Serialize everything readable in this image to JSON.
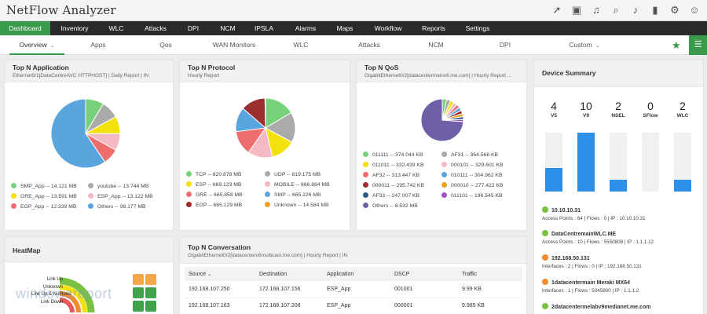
{
  "app": {
    "title": "NetFlow Analyzer"
  },
  "top_icons": [
    "rocket-icon",
    "monitor-icon",
    "headset-icon",
    "search-icon",
    "bell-icon",
    "battery-icon",
    "gear-icon",
    "user-icon"
  ],
  "main_nav": {
    "tabs": [
      {
        "label": "Dashboard"
      },
      {
        "label": "Inventory"
      },
      {
        "label": "WLC"
      },
      {
        "label": "Attacks"
      },
      {
        "label": "DPI"
      },
      {
        "label": "NCM"
      },
      {
        "label": "IPSLA"
      },
      {
        "label": "Alarms"
      },
      {
        "label": "Maps"
      },
      {
        "label": "Workflow"
      },
      {
        "label": "Reports"
      },
      {
        "label": "Settings"
      }
    ],
    "active": "Dashboard"
  },
  "sub_nav": {
    "tabs": [
      {
        "label": "Overview"
      },
      {
        "label": "Apps"
      },
      {
        "label": "Qos"
      },
      {
        "label": "WAN Monitors"
      },
      {
        "label": "WLC"
      },
      {
        "label": "Attacks"
      },
      {
        "label": "NCM"
      },
      {
        "label": "DPI"
      },
      {
        "label": "Custom"
      }
    ],
    "active": "Overview"
  },
  "top_app": {
    "title": "Top N Application",
    "subtitle": "Ethernet0/1[DataCentreAVC HTTPHOST] | Daily Report | IN",
    "legend": [
      {
        "label": "SMP_App -- 14.121 MB",
        "color": "#77d07a"
      },
      {
        "label": "youtube -- 13.744 MB",
        "color": "#aaaaaa"
      },
      {
        "label": "GRE_App -- 13.591 MB",
        "color": "#f4e00a"
      },
      {
        "label": "ESP_App -- 13.122 MB",
        "color": "#f5b9c3"
      },
      {
        "label": "EGP_App -- 12.339 MB",
        "color": "#ee6e6e"
      },
      {
        "label": "Others -- 98.177 MB",
        "color": "#5aa5de"
      }
    ],
    "pie": [
      14.121,
      13.744,
      13.591,
      13.122,
      12.339,
      98.177
    ]
  },
  "top_protocol": {
    "title": "Top N Protocol",
    "subtitle": "Hourly Report",
    "legend": [
      {
        "label": "TCP -- 820.878 MB",
        "color": "#77d07a"
      },
      {
        "label": "UDP -- 819.175 MB",
        "color": "#aaaaaa"
      },
      {
        "label": "ESP -- 669.123 MB",
        "color": "#f4e00a"
      },
      {
        "label": "MOBILE -- 666.884 MB",
        "color": "#f5b9c3"
      },
      {
        "label": "GRE -- 665.858 MB",
        "color": "#ee6e6e"
      },
      {
        "label": "SMP -- 665.226 MB",
        "color": "#5aa5de"
      },
      {
        "label": "EGP -- 665.129 MB",
        "color": "#9b2f2f"
      },
      {
        "label": "Unknown -- 14.584 MB",
        "color": "#f0a020"
      }
    ],
    "pie": [
      820.878,
      819.175,
      669.123,
      666.884,
      665.858,
      665.226,
      665.129,
      14.584
    ]
  },
  "top_qos": {
    "title": "Top N QoS",
    "subtitle": "GigabitEthernet0/2[datacentermainv6.me.com] | Hourly Report ...",
    "legend": [
      {
        "label": "011111 -- 374.044 KB",
        "color": "#77d07a"
      },
      {
        "label": "AF31 -- 364.568 KB",
        "color": "#aaaaaa"
      },
      {
        "label": "011011 -- 332.439 KB",
        "color": "#f4e00a"
      },
      {
        "label": "000101 -- 329.601 KB",
        "color": "#f5b9c3"
      },
      {
        "label": "AF32 -- 313.447 KB",
        "color": "#ee6e6e"
      },
      {
        "label": "010111 -- 304.962 KB",
        "color": "#5aa5de"
      },
      {
        "label": "000011 -- 295.742 KB",
        "color": "#9b2f2f"
      },
      {
        "label": "000010 -- 277.422 KB",
        "color": "#f0a020"
      },
      {
        "label": "AF33 -- 247.007 KB",
        "color": "#2e5c8a"
      },
      {
        "label": "011101 -- 196.545 KB",
        "color": "#a450c8"
      },
      {
        "label": "Others -- 8.532 MB",
        "color": "#6f5fa8"
      }
    ],
    "pie": [
      374.044,
      364.568,
      332.439,
      329.601,
      313.447,
      304.962,
      295.742,
      277.422,
      247.007,
      196.545,
      8532
    ]
  },
  "device_summary": {
    "title": "Device Summary",
    "counts": [
      {
        "value": "4",
        "label": "V5",
        "fill": 0.4
      },
      {
        "value": "10",
        "label": "V9",
        "fill": 1.0
      },
      {
        "value": "2",
        "label": "NSEL",
        "fill": 0.2
      },
      {
        "value": "0",
        "label": "SFlow",
        "fill": 0
      },
      {
        "value": "2",
        "label": "WLC",
        "fill": 0.2
      }
    ],
    "devices": [
      {
        "name": "10.10.10.31",
        "meta": "Access Points : 64  |  Flows : 0  |  IP : 10.10.10.31",
        "icon": "router-green-icon",
        "color": "#7ac142"
      },
      {
        "name": "DataCentremainWLC.ME",
        "meta": "Access Points : 10  |  Flows : 5550808  |  IP : 1.1.1.12",
        "icon": "router-green-icon",
        "color": "#7ac142"
      },
      {
        "name": "192.168.50.131",
        "meta": "Interfaces : 2  |  Flows : 0  |  IP : 192.168.50.131",
        "icon": "speaker-orange-icon",
        "color": "#f28a2e"
      },
      {
        "name": "1datacentermain Meraki MX64",
        "meta": "Interfaces : 1  |  Flows : 5045900  |  IP : 1.1.1.2",
        "icon": "speaker-orange-icon",
        "color": "#f28a2e"
      },
      {
        "name": "2datacentermelabv9medianet.me.com",
        "meta": "",
        "icon": "router-green-icon",
        "color": "#7ac142"
      }
    ]
  },
  "heatmap": {
    "title": "HeatMap",
    "labels": [
      "Link Up",
      "Unknown",
      "Link Up & NoFlows",
      "Link Down"
    ],
    "watermark": "windowsreport"
  },
  "top_conversation": {
    "title": "Top N Conversation",
    "subtitle": "GigabitEthernet0/2[datacenterv6multicast.me.com] | Hourly Report | IN",
    "columns": [
      "Source",
      "Destination",
      "Application",
      "DSCP",
      "Traffic"
    ],
    "rows": [
      [
        "192.168.107.250",
        "172.168.107.156",
        "ESP_App",
        "001001",
        "9.99 KB"
      ],
      [
        "192.168.107.163",
        "172.168.107.208",
        "ESP_App",
        "000001",
        "9.985 KB"
      ]
    ]
  },
  "colors": {
    "accent": "#3a9a4c",
    "bar": "#2d8fe8"
  }
}
